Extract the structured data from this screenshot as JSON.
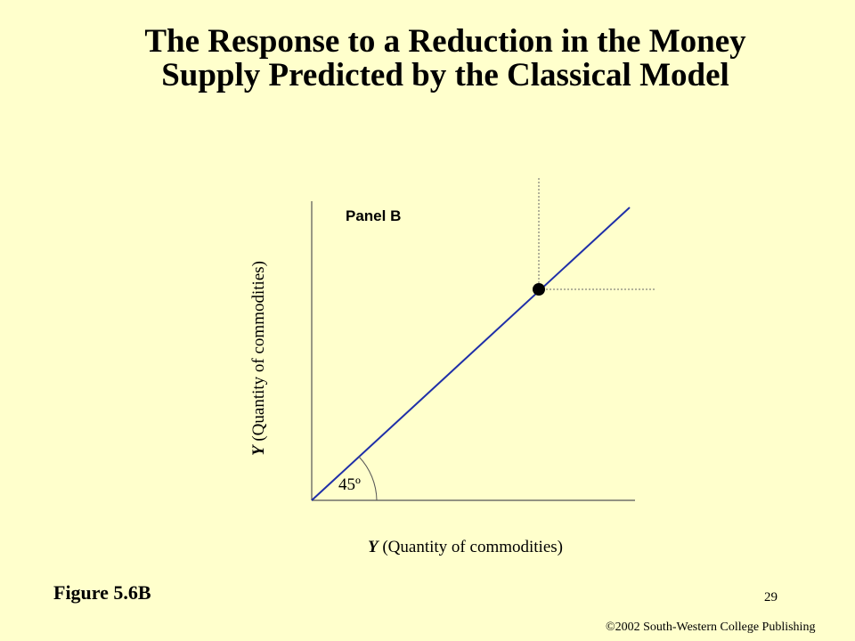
{
  "slide": {
    "title_line1": "The Response to a Reduction in the Money",
    "title_line2": "Supply Predicted by the Classical Model",
    "figure_label": "Figure 5.6B",
    "page_number": "29",
    "copyright": "©2002 South-Western College Publishing"
  },
  "diagram": {
    "panel_label": "Panel B",
    "x_axis": {
      "var": "Y",
      "label": " (Quantity of commodities)"
    },
    "y_axis": {
      "var": "Y",
      "label": " (Quantity of commodities)"
    },
    "angle_label": "45º",
    "line_color": "#1F2FA8"
  }
}
